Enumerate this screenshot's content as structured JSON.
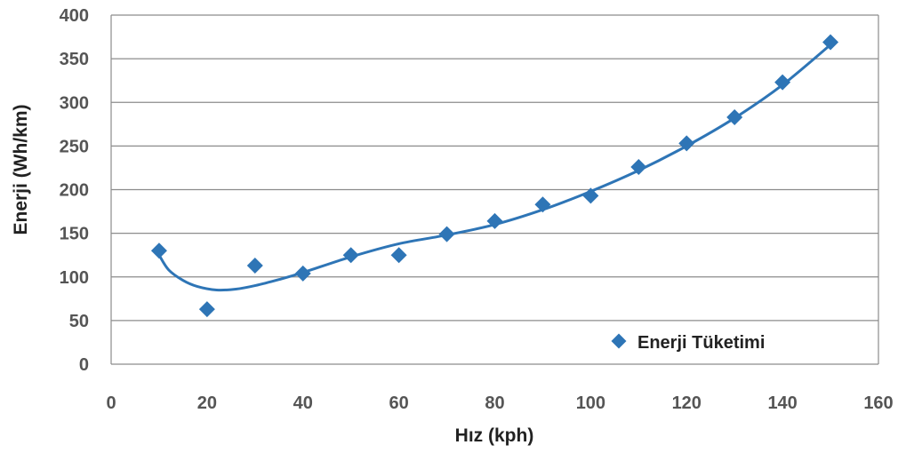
{
  "chart_data": {
    "type": "scatter",
    "title": "",
    "xlabel": "Hız (kph)",
    "ylabel": "Enerji (Wh/km)",
    "xlim": [
      0,
      160
    ],
    "ylim": [
      0,
      400
    ],
    "x_ticks": [
      "0",
      "20",
      "40",
      "60",
      "80",
      "100",
      "120",
      "140",
      "160"
    ],
    "y_ticks": [
      "0",
      "50",
      "100",
      "150",
      "200",
      "250",
      "300",
      "350",
      "400"
    ],
    "grid": "horizontal",
    "legend_position": "bottom-right",
    "series": [
      {
        "name": "Enerji Tüketimi",
        "color": "#2e75b6",
        "marker": "diamond",
        "x": [
          10,
          20,
          30,
          40,
          50,
          60,
          70,
          80,
          90,
          100,
          110,
          120,
          130,
          140,
          150
        ],
        "y": [
          130,
          63,
          113,
          104,
          125,
          125,
          149,
          164,
          183,
          193,
          226,
          253,
          283,
          323,
          369
        ]
      }
    ],
    "trendline": {
      "color": "#2e75b6",
      "x": [
        10,
        12,
        15,
        18,
        22,
        26,
        30,
        35,
        40,
        50,
        60,
        70,
        80,
        90,
        100,
        110,
        120,
        130,
        140,
        150
      ],
      "y": [
        125,
        108,
        96,
        89,
        85,
        86,
        90,
        97,
        105,
        123,
        138,
        148,
        160,
        177,
        198,
        222,
        250,
        282,
        320,
        366
      ]
    }
  }
}
